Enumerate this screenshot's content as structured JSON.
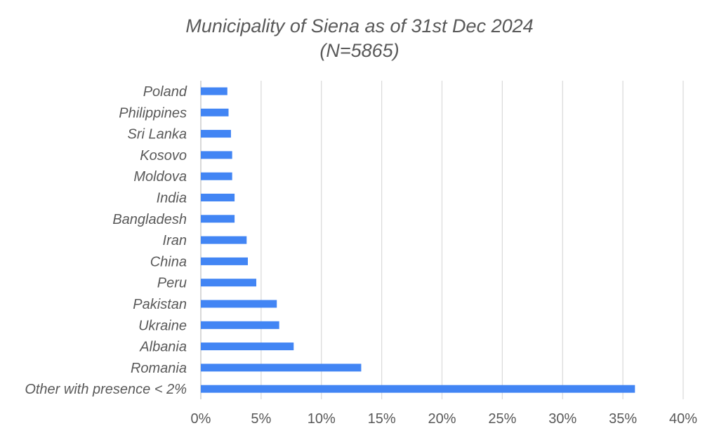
{
  "chart_data": {
    "type": "bar",
    "orientation": "horizontal",
    "title": "Municipality of Siena as of 31st Dec 2024",
    "subtitle": "(N=5865)",
    "categories": [
      "Poland",
      "Philippines",
      "Sri Lanka",
      "Kosovo",
      "Moldova",
      "India",
      "Bangladesh",
      "Iran",
      "China",
      "Peru",
      "Pakistan",
      "Ukraine",
      "Albania",
      "Romania",
      "Other with presence < 2%"
    ],
    "values": [
      2.2,
      2.3,
      2.5,
      2.6,
      2.6,
      2.8,
      2.8,
      3.8,
      3.9,
      4.6,
      6.3,
      6.5,
      7.7,
      13.3,
      36.0
    ],
    "x_ticks": [
      "0%",
      "5%",
      "10%",
      "15%",
      "20%",
      "25%",
      "30%",
      "35%",
      "40%"
    ],
    "xlim": [
      0,
      40
    ],
    "xlabel": "",
    "ylabel": "",
    "grid": "vertical",
    "legend": "none",
    "bar_color": "#4285F4",
    "gridline_color": "#D9D9D9",
    "label_color": "#595959"
  }
}
